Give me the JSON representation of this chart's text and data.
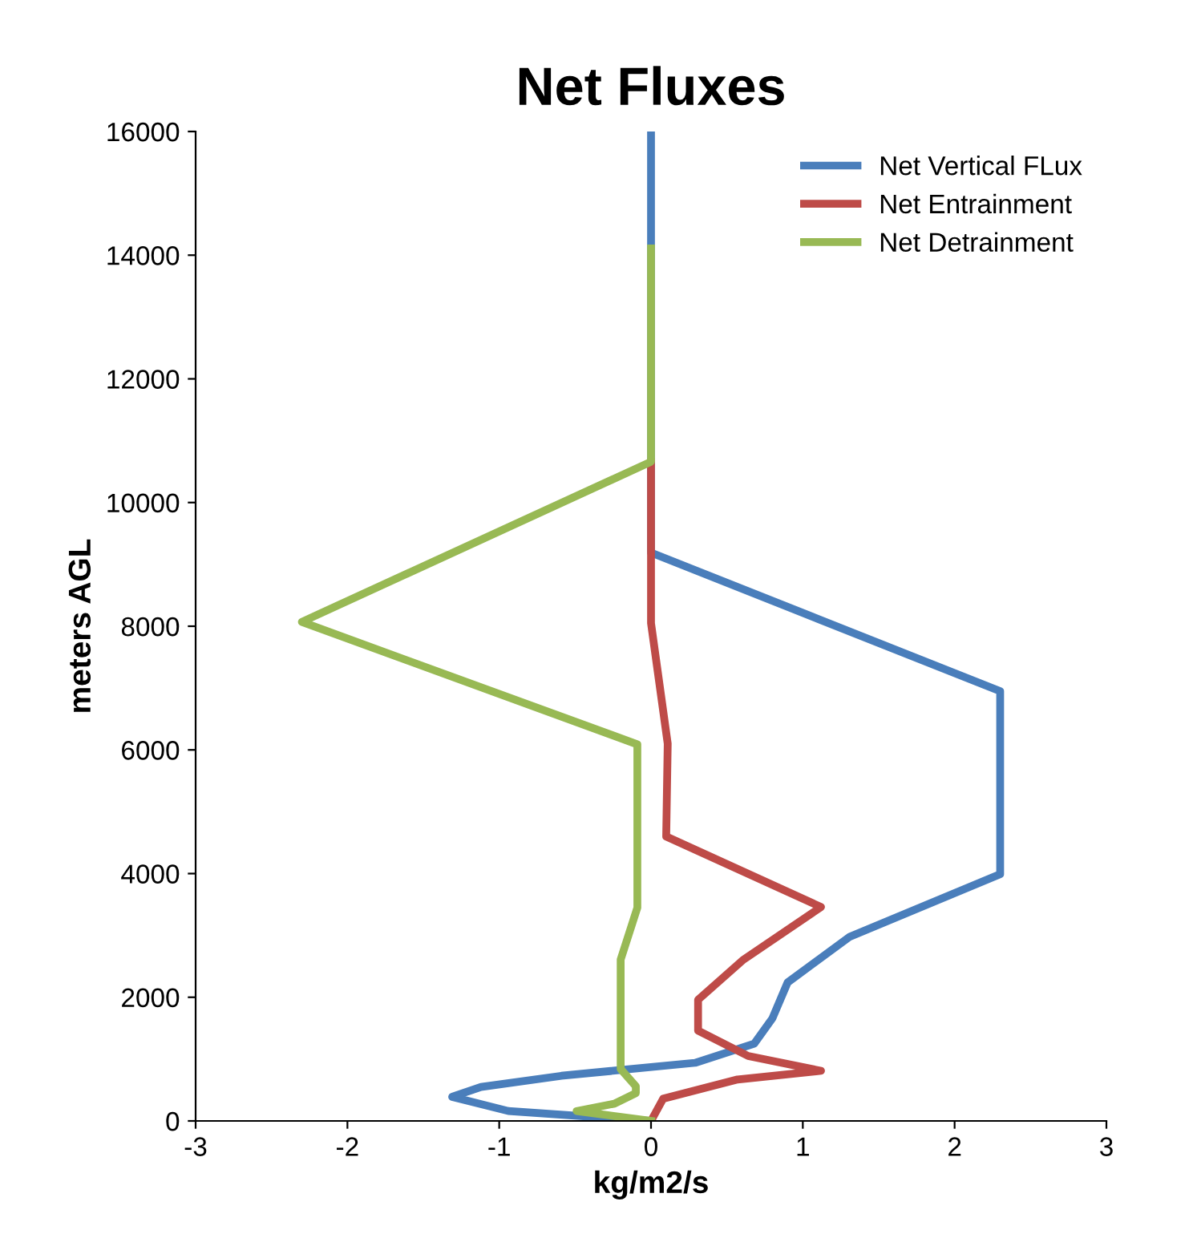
{
  "chart_data": {
    "type": "line",
    "title": "Net Fluxes",
    "xlabel": "kg/m2/s",
    "ylabel": "meters AGL",
    "xlim": [
      -3,
      3
    ],
    "xticks": [
      -3,
      -2,
      -1,
      0,
      1,
      2,
      3
    ],
    "ylim": [
      0,
      16000
    ],
    "yticks": [
      0,
      2000,
      4000,
      6000,
      8000,
      10000,
      12000,
      14000,
      16000
    ],
    "grid": false,
    "legend": "top right",
    "marker": "none",
    "line_style": "solid",
    "series": [
      {
        "name": "Net Vertical FLux",
        "color": "#4a7ebb",
        "x": [
          0,
          -0.94,
          -1.31,
          -1.12,
          -0.59,
          0.29,
          0.68,
          0.8,
          0.9,
          1.31,
          2.3,
          2.3,
          0,
          0
        ],
        "values": [
          0,
          160,
          390,
          550,
          730,
          940,
          1250,
          1660,
          2240,
          2980,
          3990,
          6950,
          9190,
          16000
        ]
      },
      {
        "name": "Net Entrainment",
        "color": "#be4b48",
        "x": [
          0,
          0.08,
          0.57,
          1.12,
          0.64,
          0.31,
          0.31,
          0.61,
          1.12,
          0.1,
          0.11,
          0,
          0
        ],
        "values": [
          0,
          360,
          670,
          810,
          1050,
          1460,
          1960,
          2610,
          3460,
          4600,
          6100,
          8050,
          10650
        ]
      },
      {
        "name": "Net Detrainment",
        "color": "#98b954",
        "x": [
          0,
          -0.49,
          -0.24,
          -0.1,
          -0.1,
          -0.2,
          -0.2,
          -0.09,
          -0.09,
          -2.3,
          0,
          0
        ],
        "values": [
          0,
          160,
          280,
          450,
          560,
          840,
          2610,
          3450,
          6090,
          8070,
          10660,
          14110
        ]
      }
    ]
  }
}
